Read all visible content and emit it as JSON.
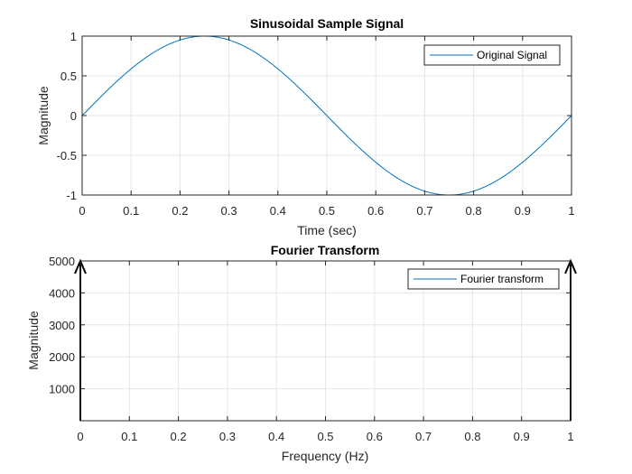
{
  "chart_data": [
    {
      "type": "line",
      "title": "Sinusoidal Sample Signal",
      "xlabel": "Time (sec)",
      "ylabel": "Magnitude",
      "xlim": [
        0,
        1
      ],
      "ylim": [
        -1,
        1
      ],
      "xticks": [
        "0",
        "0.1",
        "0.2",
        "0.3",
        "0.4",
        "0.5",
        "0.6",
        "0.7",
        "0.8",
        "0.9",
        "1"
      ],
      "yticks": [
        "-1",
        "-0.5",
        "0",
        "0.5",
        "1"
      ],
      "grid": true,
      "legend_position": "top-right",
      "series": [
        {
          "name": "Original Signal",
          "color": "#0072bd",
          "x": [
            0,
            0.05,
            0.1,
            0.15,
            0.2,
            0.25,
            0.3,
            0.35,
            0.4,
            0.45,
            0.5,
            0.55,
            0.6,
            0.65,
            0.7,
            0.75,
            0.8,
            0.85,
            0.9,
            0.95,
            1
          ],
          "y": [
            0,
            0.309,
            0.588,
            0.809,
            0.951,
            1,
            0.951,
            0.809,
            0.588,
            0.309,
            0,
            -0.309,
            -0.588,
            -0.809,
            -0.951,
            -1,
            -0.951,
            -0.809,
            -0.588,
            -0.309,
            0
          ]
        }
      ]
    },
    {
      "type": "line",
      "title": "Fourier Transform",
      "xlabel": "Frequency (Hz)",
      "ylabel": "Magnitude",
      "xlim": [
        0,
        1
      ],
      "ylim": [
        0,
        5000
      ],
      "xticks": [
        "0",
        "0.1",
        "0.2",
        "0.3",
        "0.4",
        "0.5",
        "0.6",
        "0.7",
        "0.8",
        "0.9",
        "1"
      ],
      "yticks": [
        "1000",
        "2000",
        "3000",
        "4000",
        "5000"
      ],
      "grid": true,
      "legend_position": "top-right",
      "series": [
        {
          "name": "Fourier transform",
          "color": "#0072bd",
          "x": [
            0,
            0,
            1,
            1
          ],
          "y": [
            5000,
            0,
            0,
            5000
          ]
        }
      ],
      "stems": [
        {
          "x": 0,
          "y": 5000
        },
        {
          "x": 1,
          "y": 5000
        }
      ]
    }
  ]
}
